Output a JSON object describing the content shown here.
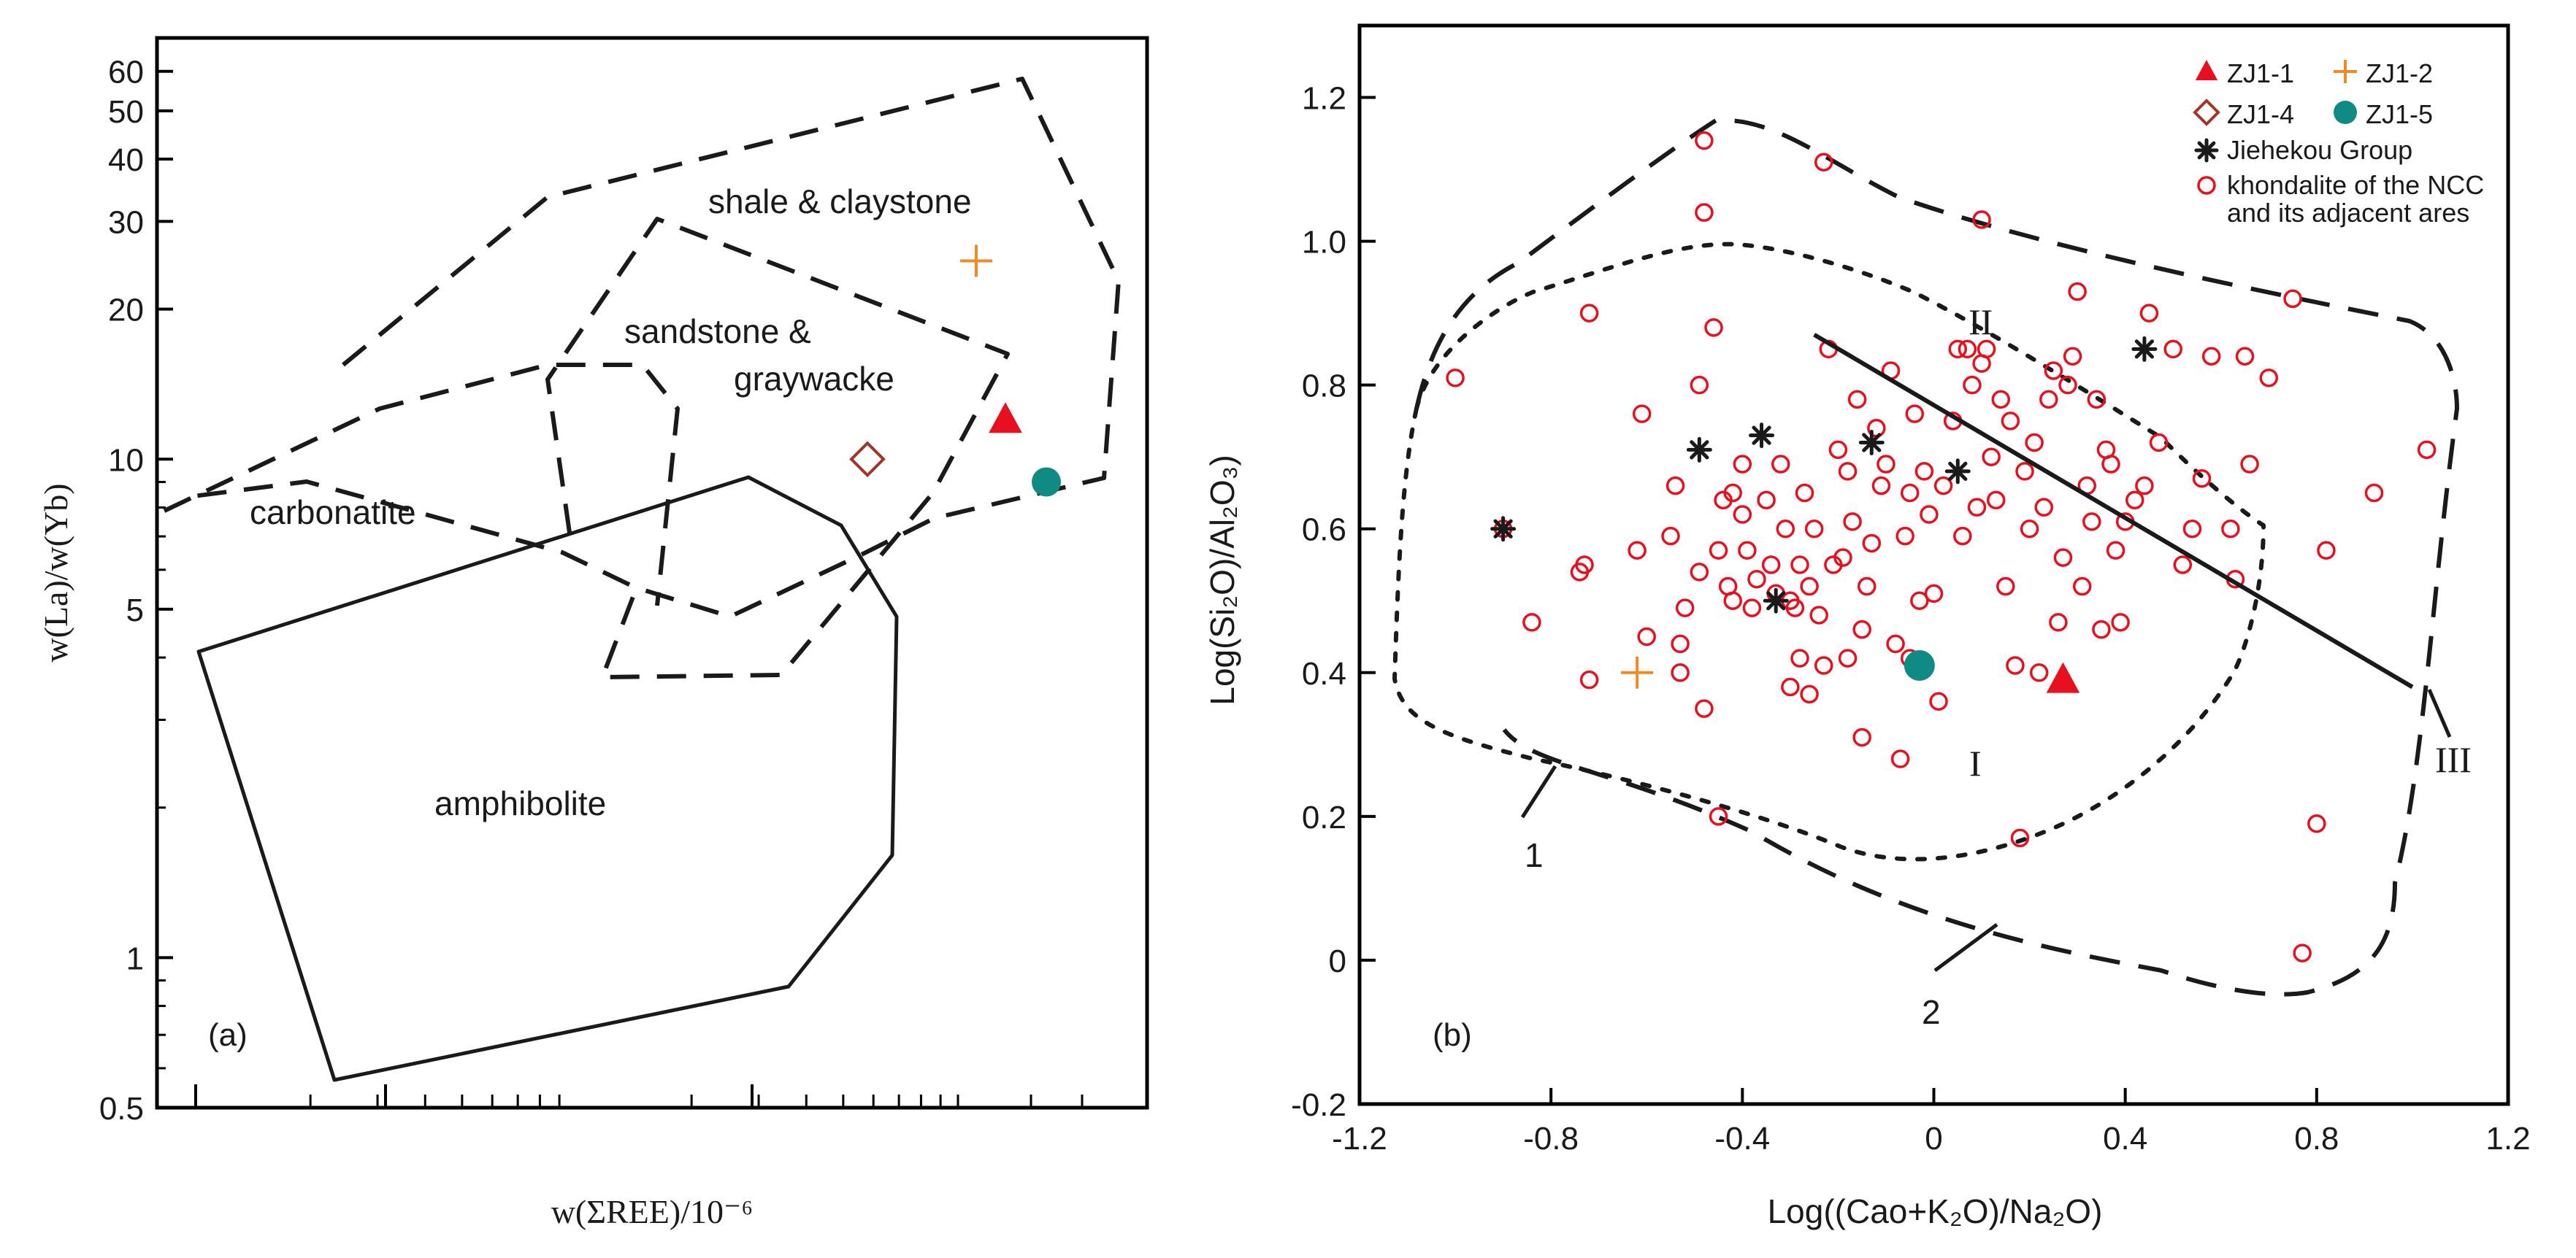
{
  "figure": {
    "panel_a_tag": "(a)",
    "panel_b_tag": "(b)"
  },
  "chart_data": [
    {
      "panel": "a",
      "type": "scatter",
      "yscale": "log",
      "xlabel": "w(ΣREE)/10⁻⁶",
      "ylabel": "w(La)/w(Yb)",
      "ylim": [
        0.5,
        70
      ],
      "yticks": [
        0.5,
        1,
        5,
        10,
        20,
        30,
        40,
        50,
        60
      ],
      "ytick_labels": [
        "0.5",
        "1",
        "5",
        "10",
        "20",
        "30",
        "40",
        "50",
        "60"
      ],
      "x_tick_labels": "none shown",
      "fields": [
        {
          "name": "shale & claystone",
          "style": "dashed"
        },
        {
          "name": "sandstone & graywacke",
          "style": "dashed"
        },
        {
          "name": "carbonatite",
          "style": "dashed"
        },
        {
          "name": "amphibolite",
          "style": "solid"
        }
      ],
      "field_labels": {
        "shale": "shale & claystone",
        "sandstone_1": "sandstone &",
        "sandstone_2": "graywacke",
        "carbonatite": "carbonatite",
        "amphibolite": "amphibolite"
      },
      "samples": [
        {
          "name": "ZJ1-1",
          "marker": "filled-triangle",
          "color": "#e8101e",
          "y": 12
        },
        {
          "name": "ZJ1-2",
          "marker": "plus",
          "color": "#f08a24",
          "y": 25
        },
        {
          "name": "ZJ1-4",
          "marker": "open-diamond",
          "color": "#a0362a",
          "y": 10
        },
        {
          "name": "ZJ1-5",
          "marker": "filled-circle",
          "color": "#0f8a84",
          "y": 9
        }
      ]
    },
    {
      "panel": "b",
      "type": "scatter",
      "xlabel": "Log((Cao+K₂O)/Na₂O)",
      "ylabel": "Log(Si₂O)/Al₂O₃)",
      "xlim": [
        -1.2,
        1.2
      ],
      "ylim": [
        -0.2,
        1.3
      ],
      "xticks": [
        -1.2,
        -0.8,
        -0.4,
        0,
        0.4,
        0.8,
        1.2
      ],
      "xtick_labels": [
        "-1.2",
        "-0.8",
        "-0.4",
        "0",
        "0.4",
        "0.8",
        "1.2"
      ],
      "yticks": [
        -0.2,
        0,
        0.2,
        0.4,
        0.6,
        0.8,
        1.0,
        1.2
      ],
      "ytick_labels": [
        "-0.2",
        "0",
        "0.2",
        "0.4",
        "0.6",
        "0.8",
        "1.0",
        "1.2"
      ],
      "zone_labels": {
        "I": "I",
        "II": "II",
        "III": "III",
        "line1": "1",
        "line2": "2"
      },
      "divider_line": [
        [
          -0.25,
          0.87
        ],
        [
          1.0,
          0.38
        ]
      ],
      "legend": [
        {
          "label": "ZJ1-1",
          "marker": "filled-triangle",
          "color": "#e8101e"
        },
        {
          "label": "ZJ1-2",
          "marker": "plus",
          "color": "#f08a24"
        },
        {
          "label": "ZJ1-4",
          "marker": "open-diamond",
          "color": "#a0362a"
        },
        {
          "label": "ZJ1-5",
          "marker": "filled-circle",
          "color": "#0f8a84"
        },
        {
          "label": "Jiehekou Group",
          "marker": "asterisk",
          "color": "#1a1a1a"
        },
        {
          "label": "khondalite of the NCC",
          "marker": "open-circle",
          "color": "#e8101e"
        },
        {
          "label": "and its adjacent ares",
          "marker": "none",
          "color": ""
        }
      ],
      "samples": [
        {
          "name": "ZJ1-1",
          "marker": "filled-triangle",
          "color": "#e8101e",
          "x": 0.27,
          "y": 0.39
        },
        {
          "name": "ZJ1-2",
          "marker": "plus",
          "color": "#f08a24",
          "x": -0.62,
          "y": 0.4
        },
        {
          "name": "ZJ1-5",
          "marker": "filled-circle",
          "color": "#0f8a84",
          "x": -0.03,
          "y": 0.41
        }
      ],
      "jiehekou": [
        {
          "x": -0.9,
          "y": 0.6
        },
        {
          "x": -0.49,
          "y": 0.71
        },
        {
          "x": -0.36,
          "y": 0.73
        },
        {
          "x": -0.13,
          "y": 0.72
        },
        {
          "x": 0.05,
          "y": 0.68
        },
        {
          "x": 0.44,
          "y": 0.85
        },
        {
          "x": -0.33,
          "y": 0.5
        }
      ],
      "khondalite": [
        {
          "x": -1.0,
          "y": 0.81
        },
        {
          "x": -0.9,
          "y": 0.6
        },
        {
          "x": -0.84,
          "y": 0.47
        },
        {
          "x": -0.72,
          "y": 0.9
        },
        {
          "x": -0.73,
          "y": 0.55
        },
        {
          "x": -0.74,
          "y": 0.54
        },
        {
          "x": -0.72,
          "y": 0.39
        },
        {
          "x": -0.62,
          "y": 0.57
        },
        {
          "x": -0.61,
          "y": 0.76
        },
        {
          "x": -0.6,
          "y": 0.45
        },
        {
          "x": -0.55,
          "y": 0.59
        },
        {
          "x": -0.54,
          "y": 0.66
        },
        {
          "x": -0.53,
          "y": 0.44
        },
        {
          "x": -0.53,
          "y": 0.4
        },
        {
          "x": -0.52,
          "y": 0.49
        },
        {
          "x": -0.49,
          "y": 0.8
        },
        {
          "x": -0.49,
          "y": 0.54
        },
        {
          "x": -0.48,
          "y": 1.14
        },
        {
          "x": -0.48,
          "y": 1.04
        },
        {
          "x": -0.48,
          "y": 0.35
        },
        {
          "x": -0.46,
          "y": 0.88
        },
        {
          "x": -0.45,
          "y": 0.57
        },
        {
          "x": -0.45,
          "y": 0.2
        },
        {
          "x": -0.44,
          "y": 0.64
        },
        {
          "x": -0.43,
          "y": 0.52
        },
        {
          "x": -0.42,
          "y": 0.65
        },
        {
          "x": -0.42,
          "y": 0.5
        },
        {
          "x": -0.4,
          "y": 0.69
        },
        {
          "x": -0.4,
          "y": 0.62
        },
        {
          "x": -0.39,
          "y": 0.57
        },
        {
          "x": -0.38,
          "y": 0.49
        },
        {
          "x": -0.37,
          "y": 0.53
        },
        {
          "x": -0.35,
          "y": 0.64
        },
        {
          "x": -0.34,
          "y": 0.55
        },
        {
          "x": -0.33,
          "y": 0.51
        },
        {
          "x": -0.32,
          "y": 0.69
        },
        {
          "x": -0.31,
          "y": 0.6
        },
        {
          "x": -0.3,
          "y": 0.38
        },
        {
          "x": -0.3,
          "y": 0.5
        },
        {
          "x": -0.29,
          "y": 0.49
        },
        {
          "x": -0.28,
          "y": 0.55
        },
        {
          "x": -0.28,
          "y": 0.42
        },
        {
          "x": -0.27,
          "y": 0.65
        },
        {
          "x": -0.26,
          "y": 0.37
        },
        {
          "x": -0.26,
          "y": 0.52
        },
        {
          "x": -0.25,
          "y": 0.6
        },
        {
          "x": -0.24,
          "y": 0.48
        },
        {
          "x": -0.23,
          "y": 1.11
        },
        {
          "x": -0.23,
          "y": 0.41
        },
        {
          "x": -0.22,
          "y": 0.85
        },
        {
          "x": -0.21,
          "y": 0.55
        },
        {
          "x": -0.2,
          "y": 0.71
        },
        {
          "x": -0.19,
          "y": 0.56
        },
        {
          "x": -0.18,
          "y": 0.42
        },
        {
          "x": -0.18,
          "y": 0.68
        },
        {
          "x": -0.17,
          "y": 0.61
        },
        {
          "x": -0.16,
          "y": 0.78
        },
        {
          "x": -0.15,
          "y": 0.31
        },
        {
          "x": -0.15,
          "y": 0.46
        },
        {
          "x": -0.14,
          "y": 0.52
        },
        {
          "x": -0.13,
          "y": 0.58
        },
        {
          "x": -0.12,
          "y": 0.74
        },
        {
          "x": -0.11,
          "y": 0.66
        },
        {
          "x": -0.1,
          "y": 0.69
        },
        {
          "x": -0.09,
          "y": 0.82
        },
        {
          "x": -0.08,
          "y": 0.44
        },
        {
          "x": -0.07,
          "y": 0.28
        },
        {
          "x": -0.06,
          "y": 0.59
        },
        {
          "x": -0.05,
          "y": 0.65
        },
        {
          "x": -0.04,
          "y": 0.76
        },
        {
          "x": -0.03,
          "y": 0.5
        },
        {
          "x": -0.02,
          "y": 0.68
        },
        {
          "x": -0.01,
          "y": 0.62
        },
        {
          "x": 0.0,
          "y": 0.51
        },
        {
          "x": 0.01,
          "y": 0.36
        },
        {
          "x": 0.02,
          "y": 0.66
        },
        {
          "x": 0.04,
          "y": 0.75
        },
        {
          "x": 0.05,
          "y": 0.85
        },
        {
          "x": 0.06,
          "y": 0.59
        },
        {
          "x": 0.07,
          "y": 0.85
        },
        {
          "x": 0.08,
          "y": 0.8
        },
        {
          "x": 0.09,
          "y": 0.63
        },
        {
          "x": 0.1,
          "y": 1.03
        },
        {
          "x": 0.1,
          "y": 0.83
        },
        {
          "x": 0.11,
          "y": 0.85
        },
        {
          "x": 0.12,
          "y": 0.7
        },
        {
          "x": 0.13,
          "y": 0.64
        },
        {
          "x": 0.14,
          "y": 0.78
        },
        {
          "x": 0.15,
          "y": 0.52
        },
        {
          "x": 0.16,
          "y": 0.75
        },
        {
          "x": 0.17,
          "y": 0.41
        },
        {
          "x": 0.18,
          "y": 0.17
        },
        {
          "x": 0.19,
          "y": 0.68
        },
        {
          "x": 0.2,
          "y": 0.6
        },
        {
          "x": 0.21,
          "y": 0.72
        },
        {
          "x": 0.22,
          "y": 0.4
        },
        {
          "x": 0.23,
          "y": 0.63
        },
        {
          "x": 0.24,
          "y": 0.78
        },
        {
          "x": 0.25,
          "y": 0.82
        },
        {
          "x": 0.26,
          "y": 0.47
        },
        {
          "x": 0.27,
          "y": 0.56
        },
        {
          "x": 0.28,
          "y": 0.8
        },
        {
          "x": 0.29,
          "y": 0.84
        },
        {
          "x": 0.3,
          "y": 0.93
        },
        {
          "x": 0.31,
          "y": 0.52
        },
        {
          "x": 0.32,
          "y": 0.66
        },
        {
          "x": 0.33,
          "y": 0.61
        },
        {
          "x": 0.34,
          "y": 0.78
        },
        {
          "x": 0.35,
          "y": 0.46
        },
        {
          "x": 0.36,
          "y": 0.71
        },
        {
          "x": 0.37,
          "y": 0.69
        },
        {
          "x": 0.38,
          "y": 0.57
        },
        {
          "x": 0.39,
          "y": 0.47
        },
        {
          "x": 0.4,
          "y": 0.61
        },
        {
          "x": 0.42,
          "y": 0.64
        },
        {
          "x": 0.44,
          "y": 0.66
        },
        {
          "x": 0.45,
          "y": 0.9
        },
        {
          "x": 0.47,
          "y": 0.72
        },
        {
          "x": 0.5,
          "y": 0.85
        },
        {
          "x": 0.52,
          "y": 0.55
        },
        {
          "x": 0.54,
          "y": 0.6
        },
        {
          "x": 0.56,
          "y": 0.67
        },
        {
          "x": 0.58,
          "y": 0.84
        },
        {
          "x": 0.62,
          "y": 0.6
        },
        {
          "x": 0.63,
          "y": 0.53
        },
        {
          "x": 0.65,
          "y": 0.84
        },
        {
          "x": 0.66,
          "y": 0.69
        },
        {
          "x": 0.7,
          "y": 0.81
        },
        {
          "x": 0.75,
          "y": 0.92
        },
        {
          "x": 0.77,
          "y": 0.01
        },
        {
          "x": 0.8,
          "y": 0.19
        },
        {
          "x": 0.82,
          "y": 0.57
        },
        {
          "x": 0.92,
          "y": 0.65
        },
        {
          "x": 1.03,
          "y": 0.71
        },
        {
          "x": -0.05,
          "y": 0.42
        }
      ]
    }
  ]
}
